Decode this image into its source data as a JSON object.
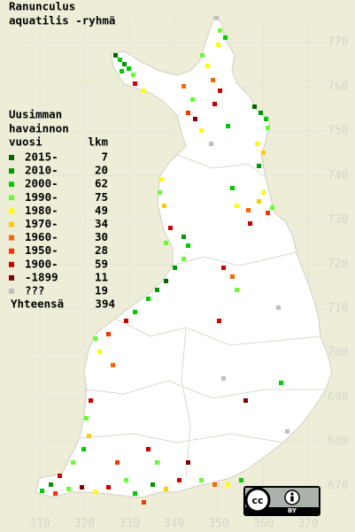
{
  "title": [
    "Ranunculus",
    "aquatilis -ryhmä"
  ],
  "legend": {
    "heading": [
      "Uusimman",
      "havainnon",
      "vuosi"
    ],
    "count_heading": "lkm",
    "items": [
      {
        "label": "2015-",
        "count": 7,
        "color": "#006600"
      },
      {
        "label": "2010-",
        "count": 20,
        "color": "#009900"
      },
      {
        "label": "2000-",
        "count": 62,
        "color": "#00cc00"
      },
      {
        "label": "1990-",
        "count": 75,
        "color": "#66ff33"
      },
      {
        "label": "1980-",
        "count": 49,
        "color": "#ffff00"
      },
      {
        "label": "1970-",
        "count": 34,
        "color": "#ffcc00"
      },
      {
        "label": "1960-",
        "count": 30,
        "color": "#ff6600"
      },
      {
        "label": "1950-",
        "count": 28,
        "color": "#ff3300"
      },
      {
        "label": "1900-",
        "count": 59,
        "color": "#cc0000"
      },
      {
        "label": "-1899",
        "count": 11,
        "color": "#800000"
      },
      {
        "label": "???",
        "count": 19,
        "color": "#c0c0c0"
      }
    ],
    "total_label": "Yhteensä",
    "total": 394
  },
  "axis": {
    "north": [
      770,
      760,
      750,
      740,
      730,
      720,
      710,
      700,
      690,
      680,
      670
    ],
    "east": [
      310,
      320,
      330,
      340,
      350,
      360,
      370
    ]
  },
  "license": {
    "icon": "cc",
    "by": "BY"
  }
}
